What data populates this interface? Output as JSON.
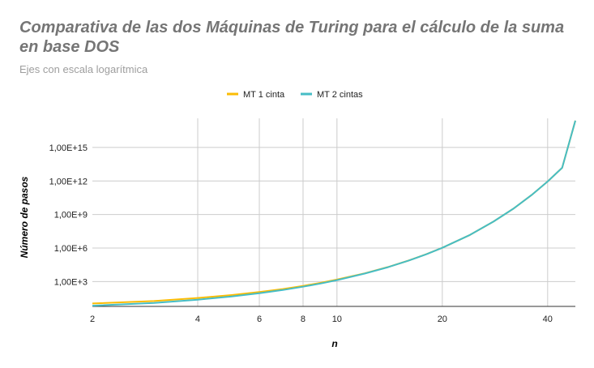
{
  "chart_data": {
    "type": "line",
    "title": "Comparativa de las dos Máquinas de Turing para el cálculo de la suma en base DOS",
    "subtitle": "Ejes con escala logarítmica",
    "xlabel": "n",
    "ylabel": "Número de pasos",
    "x_scale": "log",
    "y_scale": "log",
    "xlim": [
      2,
      48
    ],
    "ylim": [
      6,
      4e+17
    ],
    "grid": true,
    "legend_position": "top",
    "x_ticks": [
      {
        "value": 2,
        "label": "2"
      },
      {
        "value": 4,
        "label": "4"
      },
      {
        "value": 6,
        "label": "6"
      },
      {
        "value": 8,
        "label": "8"
      },
      {
        "value": 10,
        "label": "10"
      },
      {
        "value": 20,
        "label": "20"
      },
      {
        "value": 40,
        "label": "40"
      }
    ],
    "y_ticks": [
      {
        "value": 1000,
        "label": "1,00E+3"
      },
      {
        "value": 1000000,
        "label": "1,00E+6"
      },
      {
        "value": 1000000000,
        "label": "1,00E+9"
      },
      {
        "value": 1000000000000,
        "label": "1,00E+12"
      },
      {
        "value": 1000000000000000,
        "label": "1,00E+15"
      }
    ],
    "x": [
      2,
      3,
      4,
      5,
      6,
      7,
      8,
      9,
      10,
      12,
      14,
      16,
      18,
      20,
      24,
      28,
      32,
      36,
      40,
      44,
      48
    ],
    "series": [
      {
        "name": "MT 1 cinta",
        "color": "#fbbc04",
        "values": [
          11,
          18,
          34,
          62,
          115,
          215,
          410,
          780,
          1500,
          5500,
          20000,
          75000,
          280000,
          1050000,
          15000000,
          230000000,
          3500000000,
          55000000000,
          900000000000,
          15000000000000,
          250000000000000000
        ]
      },
      {
        "name": "MT 2 cintas",
        "color": "#46bdc6",
        "values": [
          7,
          12,
          24,
          46,
          90,
          175,
          345,
          680,
          1350,
          5200,
          19500,
          74000,
          278000,
          1050000,
          15000000,
          230000000,
          3500000000,
          55000000000,
          900000000000,
          15000000000000,
          250000000000000000
        ]
      }
    ]
  }
}
